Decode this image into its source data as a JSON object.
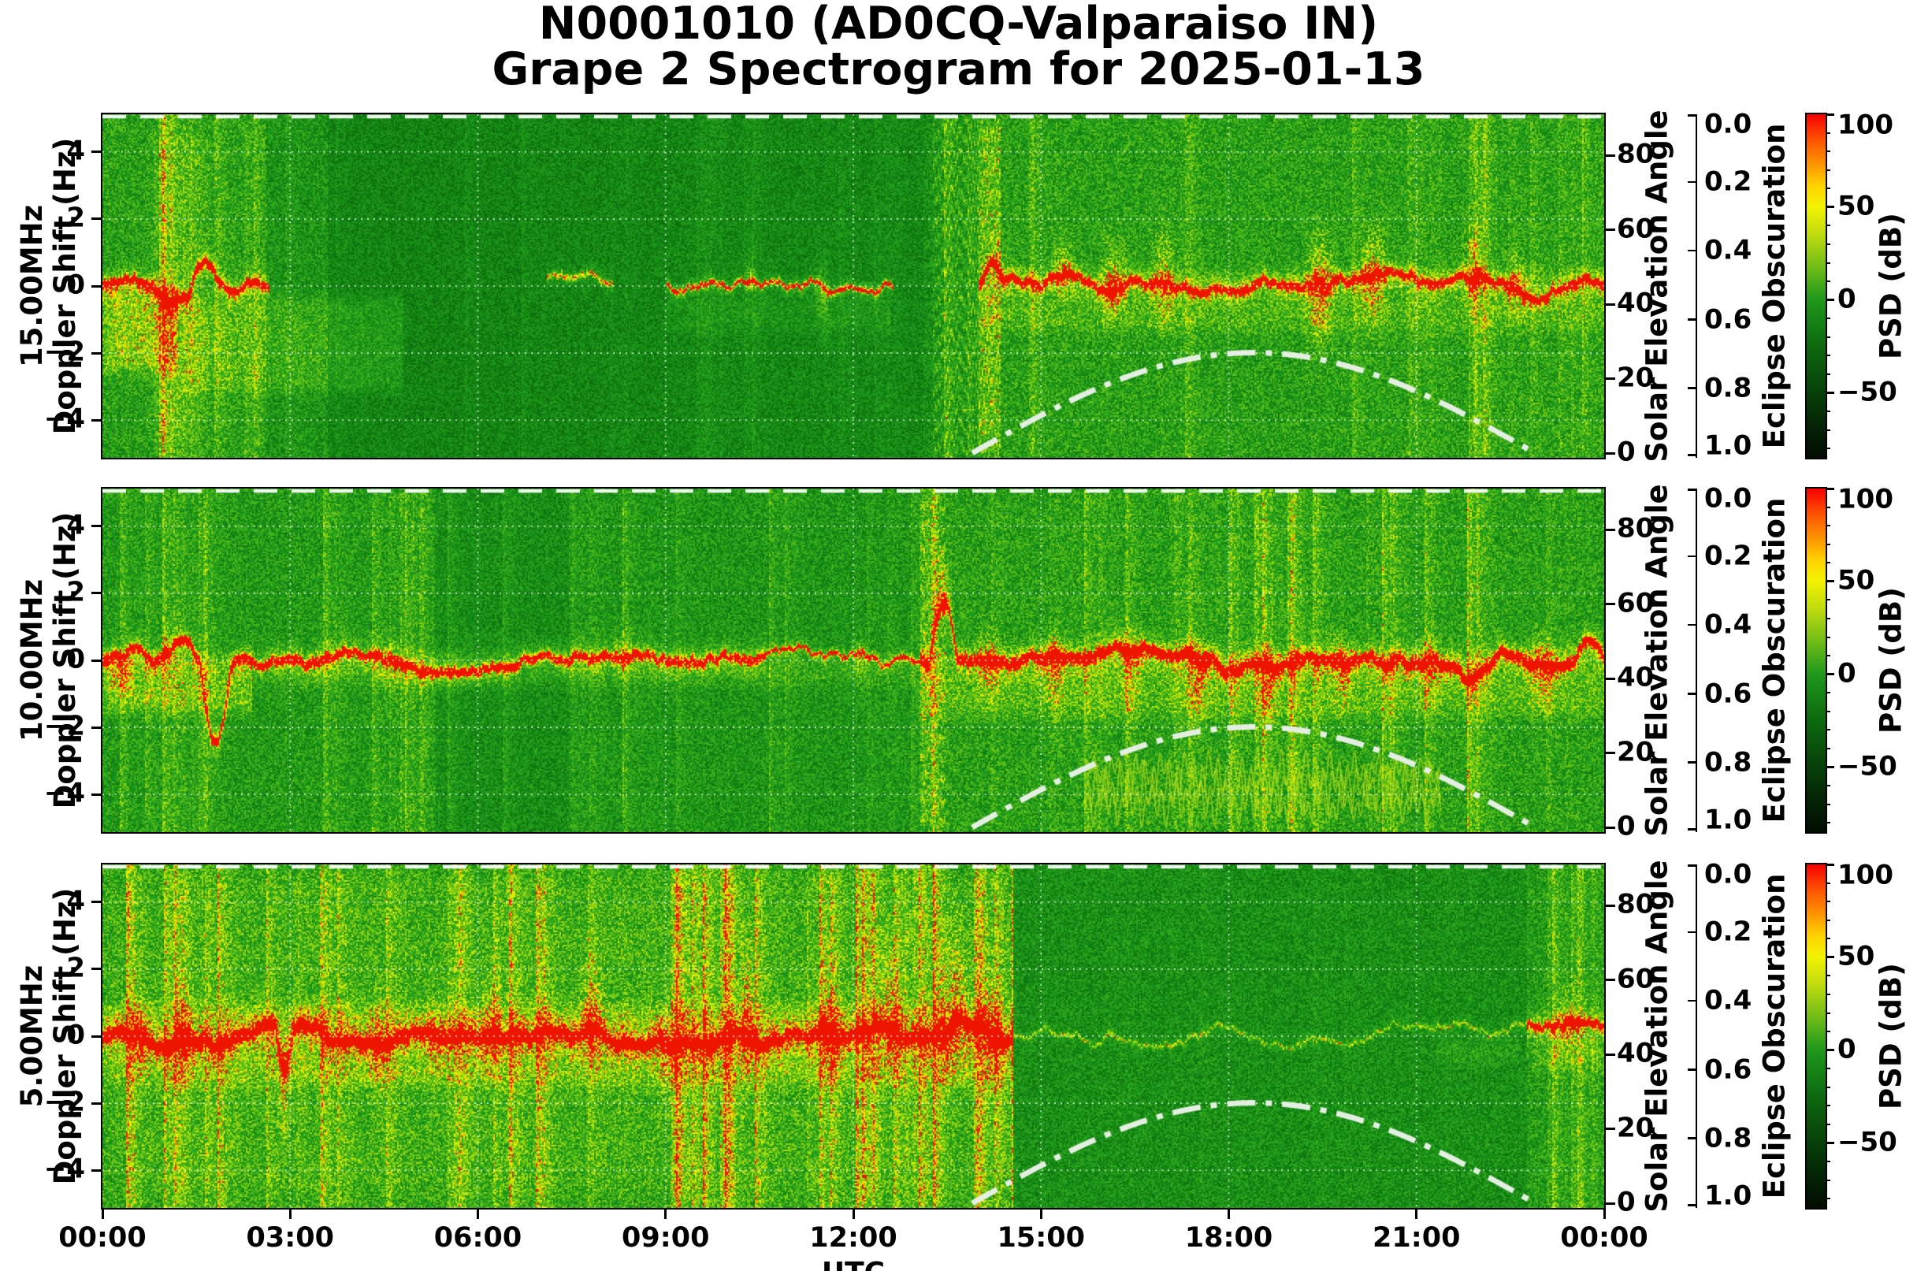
{
  "title": {
    "line1": "N0001010 (AD0CQ-Valparaiso IN)",
    "line2": "Grape 2 Spectrogram for 2025-01-13"
  },
  "axes": {
    "xlabel": "UTC",
    "xtick_labels": [
      "00:00",
      "03:00",
      "06:00",
      "09:00",
      "12:00",
      "15:00",
      "18:00",
      "21:00",
      "00:00"
    ],
    "xtick_hours": [
      0,
      3,
      6,
      9,
      12,
      15,
      18,
      21,
      24
    ],
    "doppler_tick_labels": [
      "4",
      "2",
      "0",
      "−2",
      "−4"
    ],
    "doppler_tick_values": [
      4,
      2,
      0,
      -2,
      -4
    ],
    "solar_tick_labels": [
      "80",
      "60",
      "40",
      "20",
      "0"
    ],
    "solar_tick_values": [
      80,
      60,
      40,
      20,
      0
    ],
    "eclipse_tick_labels": [
      "0.0",
      "0.2",
      "0.4",
      "0.6",
      "0.8",
      "1.0"
    ],
    "eclipse_tick_values": [
      0.0,
      0.2,
      0.4,
      0.6,
      0.8,
      1.0
    ],
    "psd_tick_labels": [
      "100",
      "50",
      "0",
      "−50"
    ],
    "psd_tick_values": [
      100,
      50,
      0,
      -50
    ]
  },
  "right_axes": {
    "solar_label": "Solar Elevation Angle",
    "eclipse_label": "Eclipse Obscuration",
    "psd_label": "PSD (dB)"
  },
  "panels": [
    {
      "freq": "15.00MHz",
      "ylabel": "Doppler Shift (Hz)"
    },
    {
      "freq": "10.00MHz",
      "ylabel": "Doppler Shift (Hz)"
    },
    {
      "freq": "5.00MHz",
      "ylabel": "Doppler Shift (Hz)"
    }
  ],
  "chart_data": {
    "type": "heatmap",
    "subtype": "doppler-spectrogram",
    "station": "N0001010 (AD0CQ-Valparaiso IN)",
    "date": "2025-01-13",
    "x_range_hours": [
      0,
      24
    ],
    "doppler_range_hz": [
      -5.12,
      5.12
    ],
    "grid_hz": [
      4,
      2,
      0,
      -2,
      -4
    ],
    "grid_hours": [
      3,
      6,
      9,
      12,
      15,
      18,
      21
    ],
    "solar_elevation_axis_deg": [
      0,
      92
    ],
    "eclipse_axis": [
      0.0,
      1.0
    ],
    "eclipse_obscuration_value": 0.0,
    "solar_elevation_curve": {
      "rise_utc": 13.9,
      "set_utc": 22.9,
      "noon_utc": 18.4,
      "peak_deg": 27,
      "style": "white dash-dot",
      "color": "#e4efe2"
    },
    "psd_colorbar": {
      "range_db": [
        100,
        -85
      ],
      "ticks_db": [
        100,
        50,
        0,
        -50
      ],
      "minor_step_db": 10,
      "gradient": [
        [
          0,
          "#f40000"
        ],
        [
          0.07,
          "#ff4e00"
        ],
        [
          0.14,
          "#ff9000"
        ],
        [
          0.21,
          "#ffd400"
        ],
        [
          0.27,
          "#f2f200"
        ],
        [
          0.35,
          "#c0dc10"
        ],
        [
          0.44,
          "#74be16"
        ],
        [
          0.54,
          "#1f981c"
        ],
        [
          0.66,
          "#0e6e10"
        ],
        [
          0.81,
          "#07400a"
        ],
        [
          0.91,
          "#042305"
        ],
        [
          1,
          "#020c02"
        ]
      ]
    },
    "noise_colormap": [
      [
        0.0,
        "#062e06"
      ],
      [
        0.14,
        "#0a650a"
      ],
      [
        0.3,
        "#128312"
      ],
      [
        0.46,
        "#219d1d"
      ],
      [
        0.6,
        "#46b61a"
      ],
      [
        0.72,
        "#85cf12"
      ],
      [
        0.82,
        "#c8e406"
      ],
      [
        0.9,
        "#f2f200"
      ],
      [
        0.945,
        "#ffae00"
      ],
      [
        0.975,
        "#ff5a00"
      ],
      [
        1.0,
        "#ee1500"
      ]
    ],
    "formats": {
      "bg": [
        "t0_utc",
        "t1_utc",
        "level"
      ],
      "streaks": [
        "t0_utc",
        "t1_utc",
        "amplitude"
      ],
      "trace": [
        "t0_utc",
        "t1_utc",
        "amplitude",
        "width_hz",
        "red_core"
      ],
      "excursions": [
        "t0_utc",
        "t1_utc",
        "delta_hz"
      ],
      "spikes": [
        "t_utc",
        "half_width_h",
        "up_hz",
        "down_hz",
        "amplitude"
      ],
      "patches": [
        "t0_utc",
        "t1_utc",
        "f0_hz",
        "f1_hz",
        "amplitude"
      ]
    },
    "spec_panels": [
      {
        "freq_mhz": 15.0,
        "seed": 101,
        "bg": [
          [
            0,
            2.6,
            0.5
          ],
          [
            2.6,
            3.6,
            0.43
          ],
          [
            3.6,
            7.0,
            0.33
          ],
          [
            7.0,
            8.9,
            0.34
          ],
          [
            8.9,
            13.1,
            0.35
          ],
          [
            13.1,
            14.0,
            0.4
          ],
          [
            14,
            24,
            0.5
          ]
        ],
        "streaks": [
          [
            0,
            2.6,
            0.8
          ],
          [
            2.6,
            13.1,
            0.18
          ],
          [
            13.1,
            24,
            0.6
          ]
        ],
        "trace": [
          [
            0,
            2.65,
            1.0,
            0.1,
            1
          ],
          [
            7.1,
            8.15,
            0.5,
            0.075,
            0
          ],
          [
            9.0,
            12.62,
            0.92,
            0.06,
            1
          ],
          [
            14.0,
            24,
            1.0,
            0.09,
            1
          ]
        ],
        "excursions": [
          [
            0,
            0.6,
            0.15
          ],
          [
            0.85,
            1.3,
            -0.3
          ],
          [
            1.35,
            1.85,
            0.85
          ],
          [
            1.9,
            2.3,
            -0.45
          ],
          [
            14.0,
            14.4,
            0.55
          ],
          [
            22.1,
            23.7,
            -0.5
          ]
        ],
        "spikes": [
          [
            10.35,
            0.12,
            1.3,
            0.7,
            0.38
          ],
          [
            11.5,
            0.15,
            1.1,
            2.3,
            0.3
          ],
          [
            14.35,
            0.18,
            1.5,
            0.8,
            0.4
          ],
          [
            15.35,
            0.22,
            1.9,
            1.1,
            0.5
          ],
          [
            16.15,
            0.28,
            2.3,
            1.5,
            0.55
          ],
          [
            16.95,
            0.28,
            2.5,
            2.0,
            0.5
          ],
          [
            19.45,
            0.3,
            2.7,
            3.2,
            0.6
          ],
          [
            20.3,
            0.28,
            2.3,
            2.5,
            0.55
          ],
          [
            21.9,
            0.22,
            2.5,
            1.3,
            0.5
          ],
          [
            22.6,
            0.25,
            1.7,
            1.2,
            0.45
          ]
        ],
        "patches": [
          [
            0,
            1.2,
            -2.8,
            0.3,
            0.3
          ],
          [
            1.2,
            4.8,
            -3.4,
            -0.1,
            0.15
          ],
          [
            0.7,
            1.7,
            -4.8,
            4.8,
            0.07
          ],
          [
            9.0,
            12.6,
            -1.6,
            -0.05,
            0.09
          ],
          [
            14,
            24,
            -1.6,
            0.7,
            0.13
          ],
          [
            13.97,
            14.35,
            -5,
            5,
            0.1
          ]
        ],
        "comb": {
          "t0": 13.25,
          "t1": 14.35,
          "period_hz": 0.62,
          "amp": 0.3
        },
        "squiggle": null
      },
      {
        "freq_mhz": 10.0,
        "seed": 202,
        "bg": [
          [
            0,
            5.3,
            0.47
          ],
          [
            5.3,
            7.6,
            0.39
          ],
          [
            7.6,
            13.05,
            0.44
          ],
          [
            13.05,
            24,
            0.5
          ]
        ],
        "streaks": [
          [
            0,
            13.05,
            0.5
          ],
          [
            13.05,
            24,
            0.8
          ]
        ],
        "trace": [
          [
            0,
            2.7,
            1.0,
            0.11,
            1
          ],
          [
            2.7,
            10.6,
            0.75,
            0.13,
            0
          ],
          [
            10.6,
            13.05,
            0.88,
            0.05,
            0
          ],
          [
            13.05,
            24,
            1.0,
            0.12,
            1
          ]
        ],
        "excursions": [
          [
            0.3,
            0.8,
            0.3
          ],
          [
            1.05,
            1.5,
            0.55
          ],
          [
            1.55,
            2.05,
            -2.3
          ],
          [
            2.05,
            2.45,
            0.35
          ],
          [
            10.6,
            13.05,
            0.12
          ],
          [
            13.2,
            13.65,
            1.7
          ],
          [
            21.5,
            22.3,
            -0.35
          ],
          [
            23.5,
            24,
            0.5
          ]
        ],
        "spikes": [
          [
            1.0,
            0.18,
            1.2,
            1.0,
            0.32
          ],
          [
            4.6,
            0.22,
            0.8,
            1.5,
            0.28
          ],
          [
            8.3,
            0.2,
            1.5,
            0.8,
            0.3
          ],
          [
            12.1,
            0.15,
            0.9,
            1.6,
            0.3
          ],
          [
            13.4,
            0.18,
            2.2,
            0.6,
            0.55
          ],
          [
            14.15,
            0.22,
            1.5,
            1.9,
            0.45
          ],
          [
            15.2,
            0.28,
            1.2,
            2.7,
            0.45
          ],
          [
            16.4,
            0.28,
            1.0,
            2.9,
            0.4
          ],
          [
            17.5,
            0.3,
            1.2,
            3.1,
            0.45
          ],
          [
            18.6,
            0.28,
            1.0,
            2.7,
            0.4
          ],
          [
            19.8,
            0.28,
            1.2,
            2.5,
            0.45
          ],
          [
            21.2,
            0.26,
            1.4,
            1.9,
            0.4
          ],
          [
            23.0,
            0.3,
            1.6,
            2.1,
            0.5
          ]
        ],
        "patches": [
          [
            0,
            2.4,
            -1.8,
            0.4,
            0.24
          ],
          [
            2.7,
            13.0,
            -1.0,
            0.45,
            0.11
          ],
          [
            13.05,
            24,
            -1.9,
            0.55,
            0.16
          ],
          [
            13.05,
            13.35,
            -5,
            5,
            0.09
          ],
          [
            0,
            0.5,
            -1.2,
            0.3,
            0.2
          ]
        ],
        "comb": {
          "t0": 13.05,
          "t1": 13.45,
          "period_hz": 0.62,
          "amp": 0.22
        },
        "squiggle": {
          "t0": 15.7,
          "t1": 21.4,
          "f_center": -3.8,
          "amp1": 0.55,
          "period1": 0.38,
          "amp2": 0.35,
          "period2": 0.13,
          "lines": 3
        }
      },
      {
        "freq_mhz": 5.0,
        "seed": 303,
        "bg": [
          [
            0,
            14.55,
            0.54
          ],
          [
            14.55,
            22.75,
            0.4
          ],
          [
            22.75,
            24,
            0.48
          ]
        ],
        "streaks": [
          [
            0,
            14.55,
            1.0
          ],
          [
            14.55,
            22.75,
            0.08
          ],
          [
            22.75,
            24,
            0.65
          ]
        ],
        "trace": [
          [
            0,
            14.55,
            1.0,
            0.14,
            1
          ],
          [
            14.55,
            22.75,
            0.34,
            0.045,
            0
          ],
          [
            22.75,
            24,
            0.78,
            0.1,
            0
          ]
        ],
        "excursions": [
          [
            2.75,
            3.05,
            -1.3
          ],
          [
            9.9,
            10.5,
            0.25
          ],
          [
            13.4,
            14.3,
            0.35
          ]
        ],
        "spikes": [
          [
            0.6,
            0.18,
            2.0,
            1.5,
            0.4
          ],
          [
            1.3,
            0.2,
            2.6,
            2.0,
            0.45
          ],
          [
            2.9,
            0.16,
            1.5,
            3.6,
            0.5
          ],
          [
            4.4,
            0.25,
            2.2,
            2.5,
            0.4
          ],
          [
            5.3,
            0.2,
            1.8,
            2.0,
            0.35
          ],
          [
            6.2,
            0.22,
            3.0,
            2.0,
            0.45
          ],
          [
            7.8,
            0.25,
            3.5,
            1.6,
            0.5
          ],
          [
            9.0,
            0.2,
            2.0,
            2.5,
            0.4
          ],
          [
            10.3,
            0.15,
            4.7,
            2.0,
            0.6
          ],
          [
            11.6,
            0.25,
            3.3,
            2.5,
            0.5
          ],
          [
            12.6,
            0.25,
            3.9,
            2.0,
            0.5
          ],
          [
            13.6,
            0.35,
            4.3,
            2.5,
            0.55
          ],
          [
            14.2,
            0.25,
            3.0,
            3.0,
            0.5
          ],
          [
            16.1,
            0.08,
            0.6,
            0.5,
            0.15
          ],
          [
            23.4,
            0.25,
            1.8,
            1.5,
            0.4
          ]
        ],
        "patches": [
          [
            0,
            14.55,
            -1.7,
            1.2,
            0.16
          ],
          [
            0,
            14.55,
            -4.9,
            4.9,
            0.05
          ],
          [
            22.75,
            24,
            -1.3,
            0.9,
            0.13
          ],
          [
            21.3,
            22.65,
            -1.05,
            0.15,
            0.1
          ]
        ],
        "comb": null,
        "squiggle": null
      }
    ]
  }
}
